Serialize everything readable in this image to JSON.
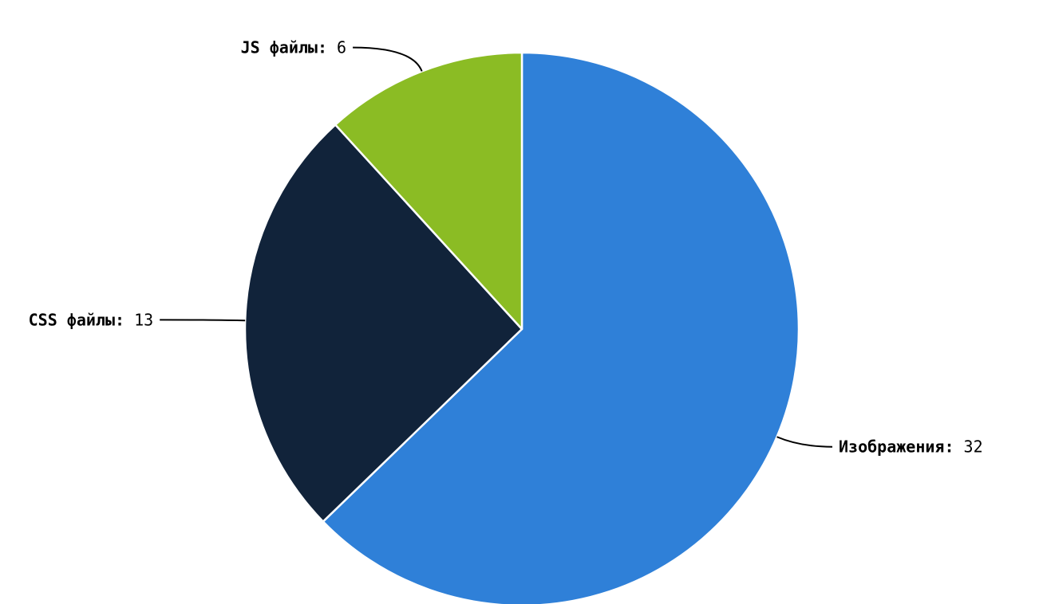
{
  "chart_data": {
    "type": "pie",
    "title": "",
    "start_angle": "top",
    "direction": "clockwise",
    "label_separator": ":",
    "slices": [
      {
        "label": "Изображения",
        "value": 32,
        "color": "#2f80d8"
      },
      {
        "label": "CSS файлы",
        "value": 13,
        "color": "#11233a"
      },
      {
        "label": "JS файлы",
        "value": 6,
        "color": "#8bbc24"
      }
    ],
    "legend": "none"
  }
}
